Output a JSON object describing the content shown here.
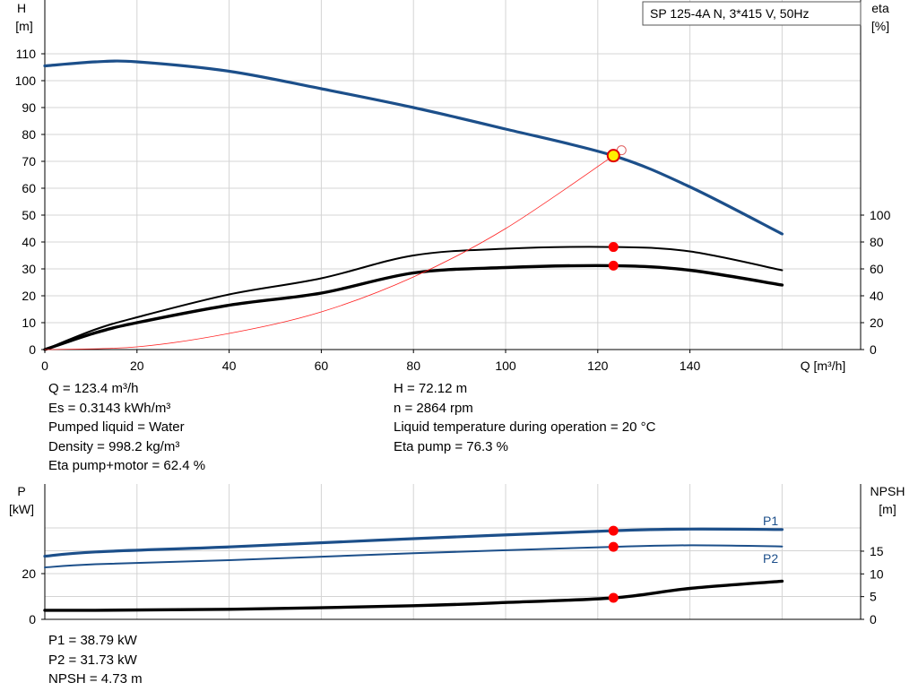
{
  "chart_data": [
    {
      "type": "line",
      "legend_box": "SP 125-4A N, 3*415 V, 50Hz",
      "x_unit_label": "Q [m³/h]",
      "y_left_label": [
        "H",
        "[m]"
      ],
      "y_right_label": [
        "eta",
        "[%]"
      ],
      "xlim": [
        0,
        160
      ],
      "ylim_left": [
        0,
        110
      ],
      "ylim_right": [
        0,
        100
      ],
      "x_ticks": [
        0,
        20,
        40,
        60,
        80,
        100,
        120,
        140
      ],
      "y_ticks_left": [
        0,
        10,
        20,
        30,
        40,
        50,
        60,
        70,
        80,
        90,
        100,
        110
      ],
      "y_ticks_right": [
        0,
        20,
        40,
        60,
        80,
        100
      ],
      "grid": true,
      "colors": {
        "head": "#1c4f8a",
        "efficiency": "#000000",
        "system": "#ff2020",
        "marker": "#ff0000",
        "duty_point": "#ffee00"
      },
      "series": [
        {
          "key": "head",
          "axis": "left",
          "style": "bold-blue",
          "x": [
            0,
            11,
            20,
            40,
            60,
            80,
            100,
            123.4,
            140,
            160
          ],
          "y": [
            105.5,
            107,
            107,
            103.5,
            97,
            90,
            82,
            72.1,
            60.5,
            43
          ]
        },
        {
          "key": "eta_pump",
          "axis": "right",
          "style": "black",
          "x": [
            0,
            11,
            20,
            40,
            60,
            80,
            100,
            123.4,
            140,
            160
          ],
          "y": [
            0,
            15,
            24,
            41,
            53,
            70,
            75,
            76.3,
            73,
            59
          ]
        },
        {
          "key": "eta_total",
          "axis": "right",
          "style": "bold-black",
          "x": [
            0,
            11,
            20,
            40,
            60,
            80,
            100,
            123.4,
            140,
            160
          ],
          "y": [
            0,
            12.5,
            20,
            33,
            42,
            57,
            61,
            62.4,
            59,
            48
          ]
        },
        {
          "key": "system",
          "axis": "left",
          "style": "thin-red",
          "x": [
            0,
            20,
            40,
            60,
            80,
            100,
            123.4
          ],
          "y": [
            0,
            1,
            6,
            14,
            27,
            45,
            72.1
          ]
        }
      ],
      "duty_point": {
        "x": 123.4,
        "head": 72.12,
        "eta_pump": 76.3,
        "eta_total": 62.4
      }
    },
    {
      "type": "line",
      "y_left_label": [
        "P",
        "[kW]"
      ],
      "y_right_label": [
        "NPSH",
        "[m]"
      ],
      "xlim": [
        0,
        160
      ],
      "ylim_left": [
        0,
        45
      ],
      "ylim_right": [
        0,
        25
      ],
      "y_ticks_left": [
        0,
        20
      ],
      "y_ticks_right": [
        0,
        5,
        10,
        15
      ],
      "grid": true,
      "series": [
        {
          "name": "P1",
          "axis": "left",
          "style": "bold-blue",
          "x": [
            0,
            11,
            40,
            80,
            123.4,
            140,
            160
          ],
          "y": [
            27.6,
            29.5,
            31.7,
            35.3,
            38.79,
            39.5,
            39.3
          ]
        },
        {
          "name": "P2",
          "axis": "left",
          "style": "blue",
          "x": [
            0,
            11,
            40,
            80,
            123.4,
            140,
            160
          ],
          "y": [
            22.7,
            24.1,
            25.9,
            28.9,
            31.73,
            32.4,
            31.9
          ]
        },
        {
          "key": "npsh",
          "axis": "right",
          "style": "bold-black",
          "x": [
            0,
            11,
            40,
            80,
            100,
            123.4,
            140,
            160
          ],
          "y": [
            2,
            2,
            2.2,
            3,
            3.7,
            4.73,
            6.8,
            8.4
          ]
        }
      ],
      "duty_point": {
        "x": 123.4,
        "p1": 38.79,
        "p2": 31.73,
        "npsh": 4.73
      }
    }
  ],
  "results_upper": {
    "left": [
      "Q = 123.4 m³/h",
      "Es = 0.3143 kWh/m³",
      "Pumped liquid = Water",
      "Density = 998.2 kg/m³",
      "Eta pump+motor = 62.4 %"
    ],
    "right": [
      "H = 72.12 m",
      "n = 2864 rpm",
      "Liquid temperature during operation = 20 °C",
      "Eta pump = 76.3 %"
    ]
  },
  "results_lower": [
    "P1 = 38.79 kW",
    "P2 = 31.73 kW",
    "NPSH = 4.73 m"
  ]
}
